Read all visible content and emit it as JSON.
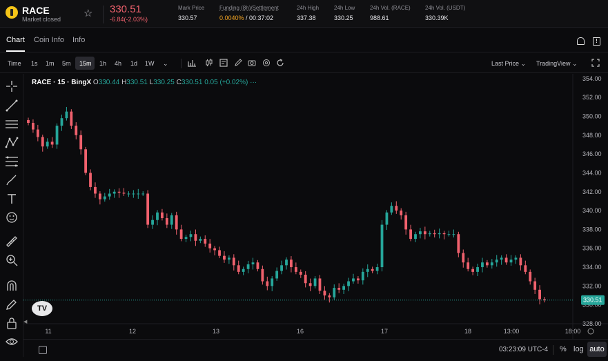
{
  "ticker": {
    "symbol": "RACE",
    "market_status": "Market closed",
    "last_price": "330.51",
    "change": "-6.84(-2.03%)",
    "stats": [
      {
        "label": "Mark Price",
        "value": "330.57"
      },
      {
        "label": "Funding (8h)/Settlement",
        "value_a": "0.0040%",
        "value_b": " / 00:37:02"
      },
      {
        "label": "24h High",
        "value": "337.38"
      },
      {
        "label": "24h Low",
        "value": "330.25"
      },
      {
        "label": "24h Vol. (RACE)",
        "value": "988.61"
      },
      {
        "label": "24h Vol. (USDT)",
        "value": "330.39K"
      }
    ]
  },
  "tabs": [
    "Chart",
    "Coin Info",
    "Info"
  ],
  "toolbar": {
    "timeframes": [
      "Time",
      "1s",
      "1m",
      "5m",
      "15m",
      "1h",
      "4h",
      "1d",
      "1W"
    ],
    "active_timeframe": "15m",
    "price_type": "Last Price",
    "view": "TradingView"
  },
  "legend": {
    "title": "RACE · 15 · BingX",
    "o_label": "O",
    "o": "330.44",
    "h_label": "H",
    "h": "330.51",
    "l_label": "L",
    "l": "330.25",
    "c_label": "C",
    "c": "330.51",
    "change": "0.05 (+0.02%)"
  },
  "bottom": {
    "clock": "03:23:09 UTC-4",
    "percent": "%",
    "log": "log",
    "auto": "auto"
  },
  "colors": {
    "up": "#26a69a",
    "down": "#f0616d",
    "bg": "#0b0b0d",
    "accent": "#f5a623"
  },
  "chart_data": {
    "type": "candlestick",
    "y_ticks": [
      "328.00",
      "330.00",
      "332.00",
      "334.00",
      "336.00",
      "338.00",
      "340.00",
      "342.00",
      "344.00",
      "346.00",
      "348.00",
      "350.00",
      "352.00",
      "354.00"
    ],
    "x_ticks": [
      "11",
      "12",
      "13",
      "16",
      "17",
      "18",
      "13:00",
      "18:00"
    ],
    "ylim": [
      328,
      354.5
    ],
    "last_price_label": "330.51",
    "series_close": [
      349.3,
      348.6,
      347.8,
      346.8,
      347.3,
      347.0,
      349.0,
      349.8,
      350.5,
      349.0,
      348.0,
      346.5,
      344.0,
      342.5,
      341.8,
      341.2,
      341.5,
      341.8,
      342.0,
      341.9,
      341.8,
      341.8,
      341.8,
      341.8,
      341.8,
      338.5,
      339.0,
      339.8,
      339.2,
      338.5,
      339.5,
      338.0,
      337.0,
      337.2,
      337.5,
      336.8,
      337.0,
      336.5,
      336.0,
      335.8,
      335.2,
      334.8,
      335.0,
      334.2,
      333.5,
      333.8,
      334.3,
      334.5,
      333.8,
      332.5,
      332.0,
      332.8,
      333.6,
      334.2,
      334.8,
      334.0,
      333.5,
      333.2,
      332.3,
      332.0,
      332.8,
      331.5,
      331.0,
      330.8,
      331.8,
      331.6,
      332.0,
      332.5,
      332.8,
      332.6,
      333.5,
      333.8,
      333.6,
      334.0,
      338.5,
      339.8,
      340.5,
      340.0,
      339.5,
      338.0,
      337.0,
      337.5,
      337.8,
      337.5,
      337.6,
      337.5,
      337.6,
      337.5,
      337.5,
      337.5,
      335.5,
      334.5,
      333.8,
      333.5,
      334.0,
      334.5,
      334.2,
      334.5,
      334.8,
      335.0,
      334.5,
      334.8,
      335.0,
      334.2,
      333.5,
      332.5,
      331.6,
      330.6,
      330.51
    ]
  }
}
